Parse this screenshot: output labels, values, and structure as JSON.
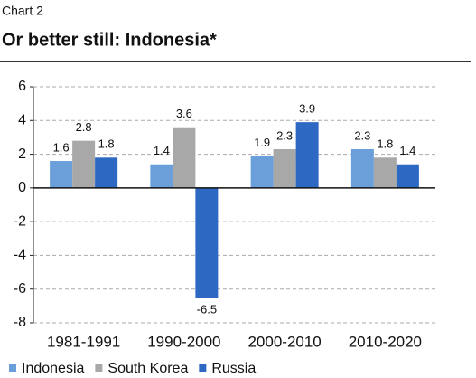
{
  "chart_data": {
    "type": "bar",
    "kicker": "Chart 2",
    "title": "Or better still: Indonesia*",
    "categories": [
      "1981-1991",
      "1990-2000",
      "2000-2010",
      "2010-2020"
    ],
    "series": [
      {
        "name": "Indonesia",
        "color": "#6a9fd9",
        "values": [
          1.6,
          1.4,
          1.9,
          2.3
        ]
      },
      {
        "name": "South Korea",
        "color": "#a8a8a8",
        "values": [
          2.8,
          3.6,
          2.3,
          1.8
        ]
      },
      {
        "name": "Russia",
        "color": "#2d68c2",
        "values": [
          1.8,
          -6.5,
          3.9,
          1.4
        ]
      }
    ],
    "ylim": [
      -8,
      6
    ],
    "yticks": [
      -8,
      -6,
      -4,
      -2,
      0,
      2,
      4,
      6
    ],
    "grid": true,
    "legend": "bottom"
  }
}
